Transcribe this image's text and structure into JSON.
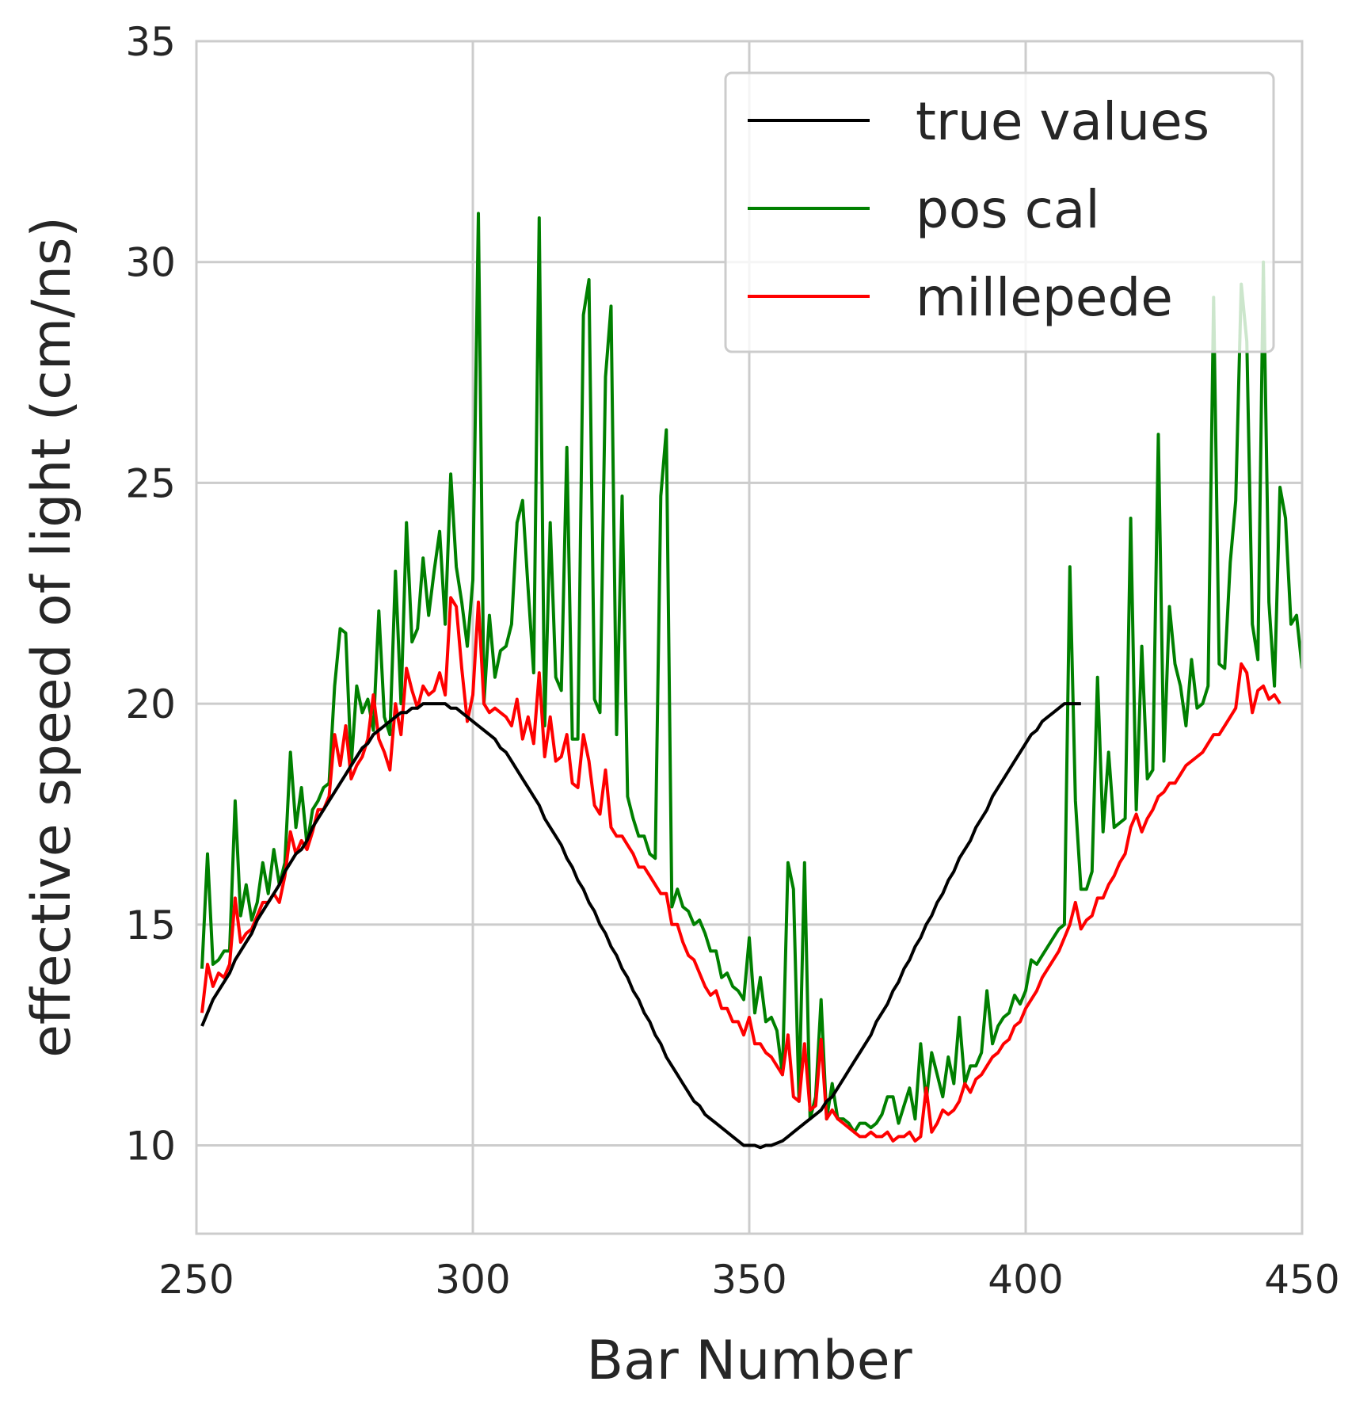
{
  "chart_data": {
    "type": "line",
    "title": "",
    "xlabel": "Bar Number",
    "ylabel": "effective speed of light (cm/ns)",
    "xlim": [
      250,
      450
    ],
    "ylim": [
      8,
      35
    ],
    "xticks": [
      250,
      300,
      350,
      400,
      450
    ],
    "yticks": [
      10,
      15,
      20,
      25,
      30,
      35
    ],
    "grid": true,
    "legend_position": "top-right",
    "x_start": 251,
    "series": [
      {
        "name": "true values",
        "color": "#000000",
        "values": [
          12.7,
          13.0,
          13.3,
          13.5,
          13.7,
          13.9,
          14.2,
          14.4,
          14.6,
          14.8,
          15.1,
          15.3,
          15.5,
          15.7,
          15.9,
          16.2,
          16.4,
          16.6,
          16.7,
          16.9,
          17.2,
          17.4,
          17.6,
          17.8,
          18.0,
          18.2,
          18.4,
          18.6,
          18.8,
          19.0,
          19.1,
          19.3,
          19.4,
          19.5,
          19.6,
          19.7,
          19.8,
          19.8,
          19.9,
          19.9,
          20.0,
          20.0,
          20.0,
          20.0,
          20.0,
          19.9,
          19.9,
          19.8,
          19.7,
          19.6,
          19.5,
          19.4,
          19.3,
          19.2,
          19.0,
          18.9,
          18.7,
          18.5,
          18.3,
          18.1,
          17.9,
          17.7,
          17.4,
          17.2,
          17.0,
          16.8,
          16.5,
          16.3,
          16.0,
          15.8,
          15.5,
          15.3,
          15.0,
          14.8,
          14.5,
          14.3,
          14.0,
          13.8,
          13.5,
          13.3,
          13.0,
          12.8,
          12.5,
          12.3,
          12.0,
          11.8,
          11.6,
          11.4,
          11.2,
          11.0,
          10.9,
          10.7,
          10.6,
          10.5,
          10.4,
          10.3,
          10.2,
          10.1,
          10.0,
          10.0,
          10.0,
          9.95,
          10.0,
          10.0,
          10.05,
          10.1,
          10.2,
          10.3,
          10.4,
          10.5,
          10.6,
          10.7,
          10.8,
          11.0,
          11.1,
          11.3,
          11.5,
          11.7,
          11.9,
          12.1,
          12.3,
          12.5,
          12.8,
          13.0,
          13.2,
          13.5,
          13.7,
          14.0,
          14.2,
          14.5,
          14.7,
          15.0,
          15.2,
          15.5,
          15.7,
          16.0,
          16.2,
          16.5,
          16.7,
          16.9,
          17.2,
          17.4,
          17.6,
          17.9,
          18.1,
          18.3,
          18.5,
          18.7,
          18.9,
          19.1,
          19.3,
          19.4,
          19.6,
          19.7,
          19.8,
          19.9,
          20.0,
          20.0,
          20.0,
          20.0
        ]
      },
      {
        "name": "pos cal",
        "color": "#008000",
        "values": [
          14.0,
          16.6,
          14.1,
          14.2,
          14.4,
          14.4,
          17.8,
          15.2,
          15.9,
          15.1,
          15.5,
          16.4,
          15.7,
          16.7,
          15.9,
          16.4,
          18.9,
          17.2,
          18.1,
          16.8,
          17.6,
          17.8,
          18.1,
          18.2,
          20.4,
          21.7,
          21.6,
          18.6,
          20.4,
          19.8,
          20.1,
          19.4,
          22.1,
          19.7,
          19.3,
          23.0,
          20.0,
          24.1,
          21.4,
          21.7,
          23.3,
          22.0,
          23.0,
          23.9,
          21.8,
          25.2,
          23.1,
          22.3,
          21.3,
          22.8,
          31.1,
          20.0,
          22.0,
          20.6,
          21.2,
          21.3,
          21.8,
          24.1,
          24.6,
          22.6,
          20.7,
          31.0,
          19.5,
          24.1,
          20.6,
          20.3,
          25.8,
          19.2,
          19.2,
          28.8,
          29.6,
          20.1,
          19.8,
          27.4,
          29.0,
          19.3,
          24.7,
          17.9,
          17.4,
          17.0,
          17.0,
          16.6,
          16.5,
          24.7,
          26.2,
          15.4,
          15.8,
          15.4,
          15.3,
          15.0,
          15.1,
          14.8,
          14.4,
          14.4,
          13.8,
          13.9,
          13.6,
          13.5,
          13.3,
          14.7,
          13.0,
          13.8,
          12.8,
          12.9,
          12.6,
          11.6,
          16.4,
          15.8,
          11.0,
          16.4,
          10.6,
          11.1,
          13.3,
          10.6,
          11.4,
          10.6,
          10.6,
          10.5,
          10.3,
          10.5,
          10.5,
          10.4,
          10.5,
          10.7,
          11.1,
          11.1,
          10.5,
          10.9,
          11.3,
          10.6,
          12.3,
          11.0,
          12.1,
          11.6,
          11.1,
          12.0,
          11.4,
          12.9,
          11.4,
          11.8,
          11.8,
          12.1,
          13.5,
          12.3,
          12.7,
          12.9,
          13.0,
          13.4,
          13.2,
          13.5,
          14.2,
          14.1,
          14.3,
          14.5,
          14.7,
          14.9,
          15.0,
          23.1,
          17.8,
          15.8,
          15.8,
          16.2,
          20.6,
          17.1,
          18.9,
          17.2,
          17.3,
          17.4,
          24.2,
          17.6,
          21.3,
          18.3,
          18.5,
          26.1,
          18.7,
          22.2,
          20.9,
          20.4,
          19.5,
          21.0,
          19.9,
          20.0,
          20.4,
          29.2,
          20.9,
          20.8,
          23.2,
          24.6,
          29.5,
          28.2,
          21.8,
          21.0,
          30.0,
          22.3,
          20.4,
          24.9,
          24.2,
          21.8,
          22.0,
          20.8
        ]
      },
      {
        "name": "millepede",
        "color": "#ff0000",
        "values": [
          13.0,
          14.1,
          13.6,
          13.9,
          13.8,
          14.1,
          15.6,
          14.6,
          14.8,
          14.9,
          15.2,
          15.5,
          15.5,
          15.7,
          15.5,
          16.1,
          17.1,
          16.6,
          16.9,
          16.7,
          17.1,
          17.6,
          17.6,
          17.9,
          19.3,
          18.6,
          19.5,
          18.3,
          18.6,
          18.8,
          19.2,
          20.2,
          19.2,
          18.9,
          18.5,
          20.0,
          19.3,
          20.8,
          20.3,
          19.9,
          20.4,
          20.2,
          20.3,
          20.7,
          20.2,
          22.4,
          22.2,
          20.8,
          19.6,
          20.2,
          22.3,
          20.0,
          19.8,
          19.9,
          19.8,
          19.7,
          19.5,
          20.1,
          19.2,
          19.7,
          19.1,
          20.7,
          18.8,
          19.7,
          18.7,
          18.8,
          19.3,
          18.2,
          18.1,
          19.3,
          18.7,
          17.7,
          17.5,
          18.5,
          17.2,
          17.0,
          17.0,
          16.8,
          16.6,
          16.3,
          16.3,
          16.1,
          15.9,
          15.7,
          15.7,
          15.0,
          15.0,
          14.6,
          14.3,
          14.2,
          13.9,
          13.6,
          13.4,
          13.5,
          13.1,
          13.1,
          12.8,
          12.8,
          12.5,
          12.9,
          12.3,
          12.3,
          12.1,
          12.0,
          11.8,
          11.6,
          12.5,
          11.1,
          11.0,
          12.3,
          10.8,
          10.9,
          12.4,
          10.6,
          10.8,
          10.6,
          10.5,
          10.4,
          10.3,
          10.2,
          10.2,
          10.3,
          10.2,
          10.2,
          10.3,
          10.1,
          10.2,
          10.2,
          10.3,
          10.1,
          10.2,
          11.3,
          10.3,
          10.5,
          10.8,
          10.7,
          10.8,
          11.0,
          11.4,
          11.2,
          11.5,
          11.6,
          11.8,
          12.0,
          12.1,
          12.3,
          12.4,
          12.7,
          12.8,
          13.1,
          13.3,
          13.5,
          13.8,
          14.0,
          14.2,
          14.4,
          14.7,
          15.0,
          15.5,
          14.9,
          15.1,
          15.2,
          15.6,
          15.6,
          15.9,
          16.1,
          16.4,
          16.6,
          17.2,
          17.5,
          17.1,
          17.4,
          17.6,
          17.9,
          18.0,
          18.2,
          18.2,
          18.4,
          18.6,
          18.7,
          18.8,
          18.9,
          19.1,
          19.3,
          19.3,
          19.5,
          19.7,
          19.9,
          20.9,
          20.7,
          19.8,
          20.3,
          20.4,
          20.1,
          20.2,
          20.0
        ]
      }
    ]
  }
}
